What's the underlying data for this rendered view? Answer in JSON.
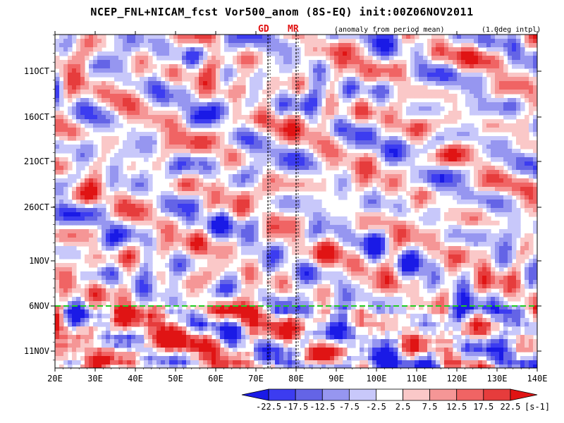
{
  "chart_data": {
    "type": "heatmap",
    "title": "NCEP_FNL+NICAM_fcst Vor500_anom (8S-EQ) init:00Z06NOV2011",
    "subtitle": "(anomaly from period mean)",
    "interpolation_note": "(1.0deg intpl)",
    "x_axis": {
      "range": [
        20,
        140
      ],
      "ticks": [
        "20E",
        "30E",
        "40E",
        "50E",
        "60E",
        "70E",
        "80E",
        "90E",
        "100E",
        "110E",
        "120E",
        "130E",
        "140E"
      ],
      "tick_values": [
        20,
        30,
        40,
        50,
        60,
        70,
        80,
        90,
        100,
        110,
        120,
        130,
        140
      ]
    },
    "y_axis": {
      "direction": "time, increasing downward",
      "ticks": [
        "11OCT",
        "16OCT",
        "21OCT",
        "26OCT",
        "1NOV",
        "6NOV",
        "11NOV"
      ]
    },
    "init_line": {
      "label": "6NOV",
      "color": "#22cc22"
    },
    "reference_lines": [
      {
        "label": "GD",
        "lon": 73
      },
      {
        "label": "MR",
        "lon": 80
      }
    ],
    "colorbar": {
      "levels": [
        -22.5,
        -17.5,
        -12.5,
        -7.5,
        -2.5,
        2.5,
        7.5,
        12.5,
        17.5,
        22.5
      ],
      "labels": [
        "-22.5",
        "-17.5",
        "-12.5",
        "-7.5",
        "-2.5",
        "2.5",
        "7.5",
        "12.5",
        "17.5",
        "22.5"
      ],
      "colors": [
        "#1a1ae6",
        "#3c3cf0",
        "#6464e6",
        "#9696f0",
        "#c8c8fa",
        "#ffffff",
        "#fac8c8",
        "#f59696",
        "#f06464",
        "#e63c3c",
        "#e01414"
      ],
      "unit": "[s-1]"
    }
  }
}
